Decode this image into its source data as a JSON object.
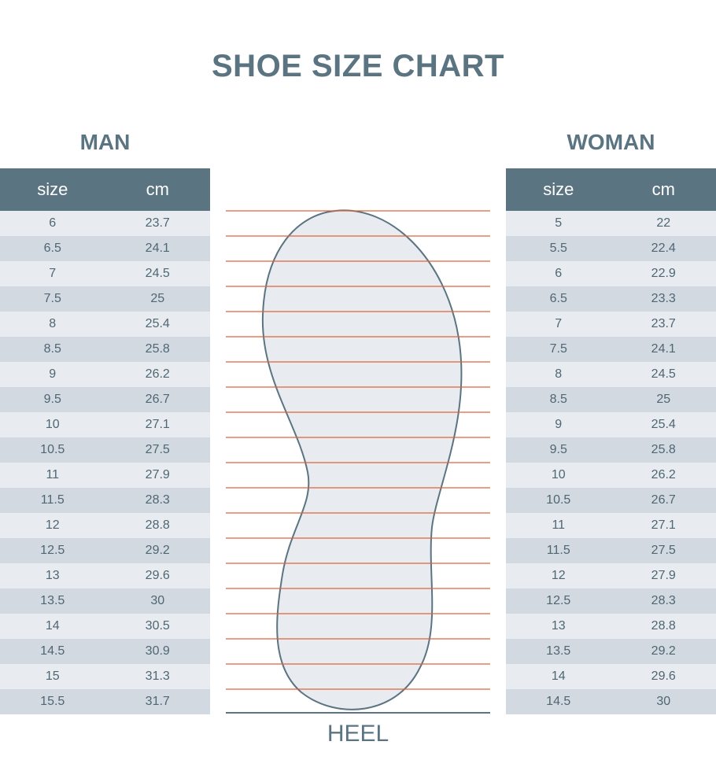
{
  "title": "SHOE SIZE CHART",
  "man": {
    "label": "MAN",
    "header": {
      "size": "size",
      "cm": "cm"
    },
    "rows": [
      {
        "size": "6",
        "cm": "23.7"
      },
      {
        "size": "6.5",
        "cm": "24.1"
      },
      {
        "size": "7",
        "cm": "24.5"
      },
      {
        "size": "7.5",
        "cm": "25"
      },
      {
        "size": "8",
        "cm": "25.4"
      },
      {
        "size": "8.5",
        "cm": "25.8"
      },
      {
        "size": "9",
        "cm": "26.2"
      },
      {
        "size": "9.5",
        "cm": "26.7"
      },
      {
        "size": "10",
        "cm": "27.1"
      },
      {
        "size": "10.5",
        "cm": "27.5"
      },
      {
        "size": "11",
        "cm": "27.9"
      },
      {
        "size": "11.5",
        "cm": "28.3"
      },
      {
        "size": "12",
        "cm": "28.8"
      },
      {
        "size": "12.5",
        "cm": "29.2"
      },
      {
        "size": "13",
        "cm": "29.6"
      },
      {
        "size": "13.5",
        "cm": "30"
      },
      {
        "size": "14",
        "cm": "30.5"
      },
      {
        "size": "14.5",
        "cm": "30.9"
      },
      {
        "size": "15",
        "cm": "31.3"
      },
      {
        "size": "15.5",
        "cm": "31.7"
      }
    ]
  },
  "woman": {
    "label": "WOMAN",
    "header": {
      "size": "size",
      "cm": "cm"
    },
    "rows": [
      {
        "size": "5",
        "cm": "22"
      },
      {
        "size": "5.5",
        "cm": "22.4"
      },
      {
        "size": "6",
        "cm": "22.9"
      },
      {
        "size": "6.5",
        "cm": "23.3"
      },
      {
        "size": "7",
        "cm": "23.7"
      },
      {
        "size": "7.5",
        "cm": "24.1"
      },
      {
        "size": "8",
        "cm": "24.5"
      },
      {
        "size": "8.5",
        "cm": "25"
      },
      {
        "size": "9",
        "cm": "25.4"
      },
      {
        "size": "9.5",
        "cm": "25.8"
      },
      {
        "size": "10",
        "cm": "26.2"
      },
      {
        "size": "10.5",
        "cm": "26.7"
      },
      {
        "size": "11",
        "cm": "27.1"
      },
      {
        "size": "11.5",
        "cm": "27.5"
      },
      {
        "size": "12",
        "cm": "27.9"
      },
      {
        "size": "12.5",
        "cm": "28.3"
      },
      {
        "size": "13",
        "cm": "28.8"
      },
      {
        "size": "13.5",
        "cm": "29.2"
      },
      {
        "size": "14",
        "cm": "29.6"
      },
      {
        "size": "14.5",
        "cm": "30"
      }
    ]
  },
  "heel_label": "HEEL",
  "colors": {
    "header_bg": "#5b7482",
    "row_light": "#e8ebef",
    "row_dark": "#d3d9e0",
    "guide_line": "#e0643a",
    "foot_fill": "#e8ebef",
    "foot_stroke": "#5b7482"
  },
  "chart_data": {
    "type": "table",
    "title": "SHOE SIZE CHART",
    "columns": [
      "size",
      "cm"
    ],
    "series": [
      {
        "name": "MAN",
        "size": [
          "6",
          "6.5",
          "7",
          "7.5",
          "8",
          "8.5",
          "9",
          "9.5",
          "10",
          "10.5",
          "11",
          "11.5",
          "12",
          "12.5",
          "13",
          "13.5",
          "14",
          "14.5",
          "15",
          "15.5"
        ],
        "cm": [
          23.7,
          24.1,
          24.5,
          25,
          25.4,
          25.8,
          26.2,
          26.7,
          27.1,
          27.5,
          27.9,
          28.3,
          28.8,
          29.2,
          29.6,
          30,
          30.5,
          30.9,
          31.3,
          31.7
        ]
      },
      {
        "name": "WOMAN",
        "size": [
          "5",
          "5.5",
          "6",
          "6.5",
          "7",
          "7.5",
          "8",
          "8.5",
          "9",
          "9.5",
          "10",
          "10.5",
          "11",
          "11.5",
          "12",
          "12.5",
          "13",
          "13.5",
          "14",
          "14.5"
        ],
        "cm": [
          22,
          22.4,
          22.9,
          23.3,
          23.7,
          24.1,
          24.5,
          25,
          25.4,
          25.8,
          26.2,
          26.7,
          27.1,
          27.5,
          27.9,
          28.3,
          28.8,
          29.2,
          29.6,
          30
        ]
      }
    ]
  }
}
